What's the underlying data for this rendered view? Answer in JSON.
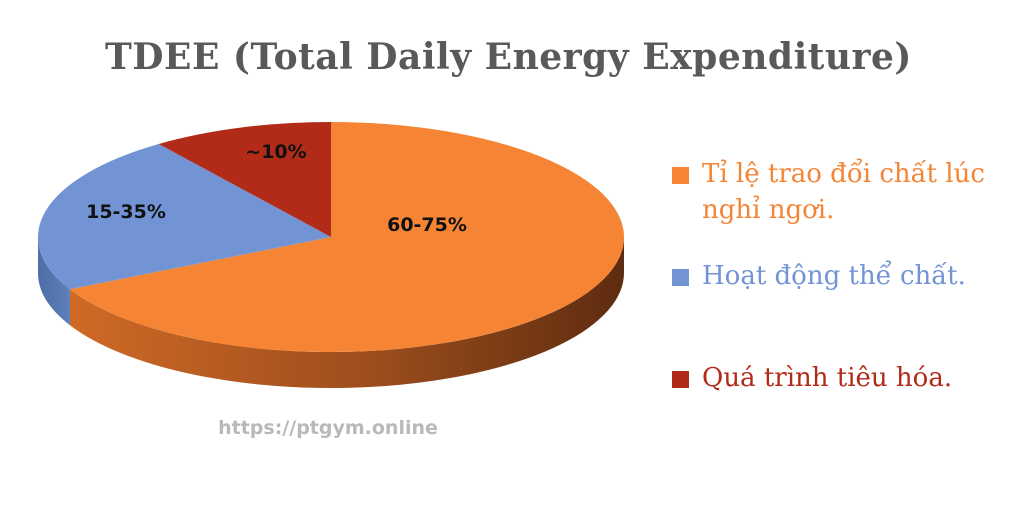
{
  "chart_data": {
    "type": "pie",
    "title": "TDEE (Total Daily Energy Expenditure)",
    "slices": [
      {
        "label": "Tỉ lệ trao đổi chất lúc nghỉ ngơi.",
        "data_label": "60-75%",
        "value": 67.5,
        "color": "#f58534"
      },
      {
        "label": "Hoạt động thể chất.",
        "data_label": "15-35%",
        "value": 22.5,
        "color": "#7294d4"
      },
      {
        "label": "Quá trình tiêu hóa.",
        "data_label": "~10%",
        "value": 10,
        "color": "#b22a18"
      }
    ],
    "legend_position": "right",
    "style": "3d"
  },
  "watermark": "https://ptgym.online",
  "colors": {
    "title": "#595959",
    "watermark": "#b9b9b9",
    "slice_text": "#111111"
  }
}
